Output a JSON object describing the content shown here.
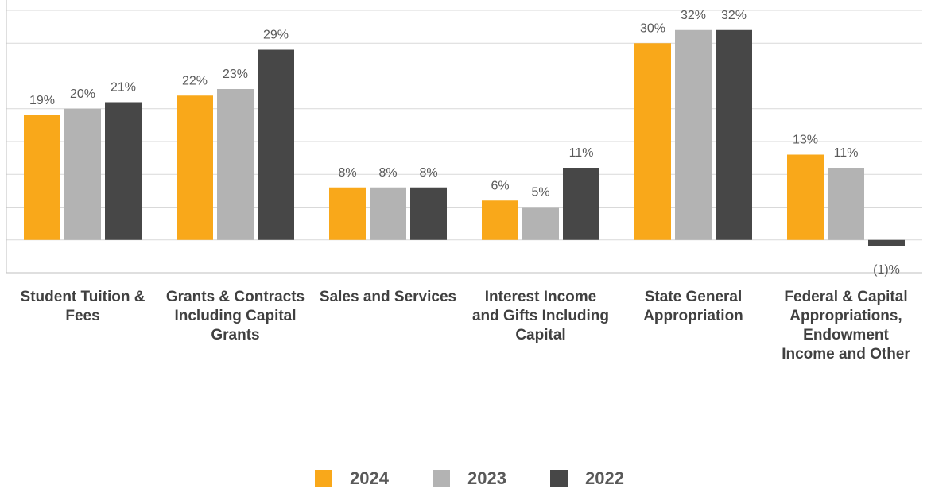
{
  "chart_data": {
    "type": "bar",
    "categories": [
      "Student Tuition & Fees",
      "Grants & Contracts Including Capital Grants",
      "Sales and Services",
      "Interest Income and Gifts Including Capital",
      "State General Appropriation",
      "Federal & Capital Appropriations, Endowment Income and Other"
    ],
    "series": [
      {
        "name": "2024",
        "color": "#f9a81a",
        "values": [
          19,
          22,
          8,
          6,
          30,
          13
        ],
        "value_labels": [
          "19%",
          "22%",
          "8%",
          "6%",
          "30%",
          "13%"
        ]
      },
      {
        "name": "2023",
        "color": "#b3b3b3",
        "values": [
          20,
          23,
          8,
          5,
          32,
          11
        ],
        "value_labels": [
          "20%",
          "23%",
          "8%",
          "5%",
          "32%",
          "11%"
        ]
      },
      {
        "name": "2022",
        "color": "#474747",
        "values": [
          21,
          29,
          8,
          11,
          32,
          -1
        ],
        "value_labels": [
          "21%",
          "29%",
          "8%",
          "11%",
          "32%",
          "(1)%"
        ]
      }
    ],
    "ylim": [
      -5,
      35
    ],
    "yticks": [
      0,
      5,
      10,
      15,
      20,
      25,
      30,
      35
    ],
    "grid": true,
    "legend": "bottom"
  }
}
